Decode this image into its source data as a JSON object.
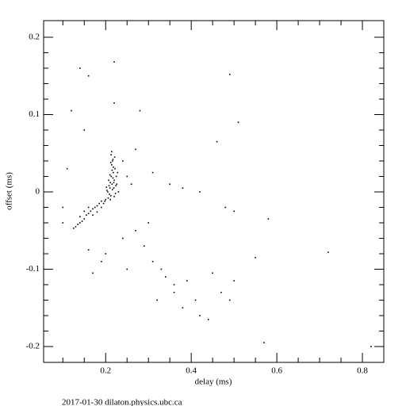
{
  "chart_data": {
    "type": "scatter",
    "xlabel": "delay (ms)",
    "ylabel": "offset (ms)",
    "footer": "2017-01-30  dilaton.physics.ubc.ca",
    "color": "#000000",
    "xlim": [
      0.055,
      0.85
    ],
    "ylim": [
      -0.2205,
      0.2215
    ],
    "xticks": [
      0.2,
      0.4,
      0.6,
      0.8
    ],
    "yticks": [
      -0.2,
      -0.1,
      0,
      0.1,
      0.2
    ],
    "xminorticks": [
      0.1,
      0.15,
      0.25,
      0.3,
      0.35,
      0.45,
      0.5,
      0.55,
      0.65,
      0.7,
      0.75
    ],
    "yminorticks": [
      -0.18,
      -0.16,
      -0.14,
      -0.12,
      -0.08,
      -0.06,
      -0.04,
      -0.02,
      0.02,
      0.04,
      0.06,
      0.08,
      0.12,
      0.14,
      0.16,
      0.18
    ],
    "x": [
      0.205,
      0.21,
      0.215,
      0.22,
      0.225,
      0.212,
      0.218,
      0.208,
      0.222,
      0.214,
      0.2,
      0.206,
      0.211,
      0.216,
      0.221,
      0.226,
      0.203,
      0.213,
      0.219,
      0.209,
      0.215,
      0.217,
      0.212,
      0.22,
      0.224,
      0.207,
      0.213,
      0.218,
      0.21,
      0.216,
      0.198,
      0.202,
      0.23,
      0.195,
      0.228,
      0.214,
      0.219,
      0.211,
      0.223,
      0.217,
      0.19,
      0.185,
      0.18,
      0.175,
      0.17,
      0.165,
      0.16,
      0.155,
      0.15,
      0.145,
      0.14,
      0.135,
      0.13,
      0.125,
      0.17,
      0.16,
      0.18,
      0.15,
      0.19,
      0.14,
      0.14,
      0.16,
      0.22,
      0.49,
      0.12,
      0.22,
      0.51,
      0.28,
      0.15,
      0.46,
      0.27,
      0.11,
      0.31,
      0.35,
      0.38,
      0.42,
      0.48,
      0.5,
      0.58,
      0.3,
      0.27,
      0.16,
      0.29,
      0.31,
      0.33,
      0.25,
      0.17,
      0.34,
      0.36,
      0.39,
      0.45,
      0.5,
      0.49,
      0.38,
      0.42,
      0.44,
      0.55,
      0.72,
      0.57,
      0.82,
      0.32,
      0.41,
      0.1,
      0.1,
      0.24,
      0.25,
      0.26,
      0.24,
      0.2,
      0.19,
      0.47,
      0.36
    ],
    "values": [
      0,
      0.005,
      0.01,
      0.015,
      0.02,
      -0.005,
      0.025,
      0.008,
      0.03,
      0.035,
      -0.01,
      -0.008,
      0.012,
      0.04,
      0.045,
      0.01,
      0.002,
      0.02,
      0.005,
      -0.003,
      0.028,
      0.018,
      0.038,
      -0.006,
      0.008,
      0.015,
      0.048,
      0.032,
      0.022,
      0.003,
      -0.012,
      0.006,
      0,
      -0.015,
      0.025,
      0.052,
      0.012,
      -0.01,
      -0.002,
      0.042,
      -0.012,
      -0.015,
      -0.018,
      -0.02,
      -0.022,
      -0.025,
      -0.028,
      -0.03,
      -0.035,
      -0.038,
      -0.04,
      -0.042,
      -0.045,
      -0.047,
      -0.03,
      -0.02,
      -0.026,
      -0.025,
      -0.02,
      -0.032,
      0.16,
      0.15,
      0.168,
      0.152,
      0.105,
      0.115,
      0.09,
      0.105,
      0.08,
      0.065,
      0.055,
      0.03,
      0.025,
      0.01,
      0.005,
      0,
      -0.02,
      -0.025,
      -0.035,
      -0.04,
      -0.05,
      -0.075,
      -0.07,
      -0.09,
      -0.1,
      -0.1,
      -0.105,
      -0.11,
      -0.12,
      -0.115,
      -0.105,
      -0.115,
      -0.14,
      -0.15,
      -0.16,
      -0.165,
      -0.085,
      -0.078,
      -0.195,
      -0.2,
      -0.14,
      -0.14,
      -0.04,
      -0.02,
      0.04,
      0.02,
      0.01,
      -0.06,
      -0.08,
      -0.09,
      -0.13,
      -0.13
    ]
  }
}
